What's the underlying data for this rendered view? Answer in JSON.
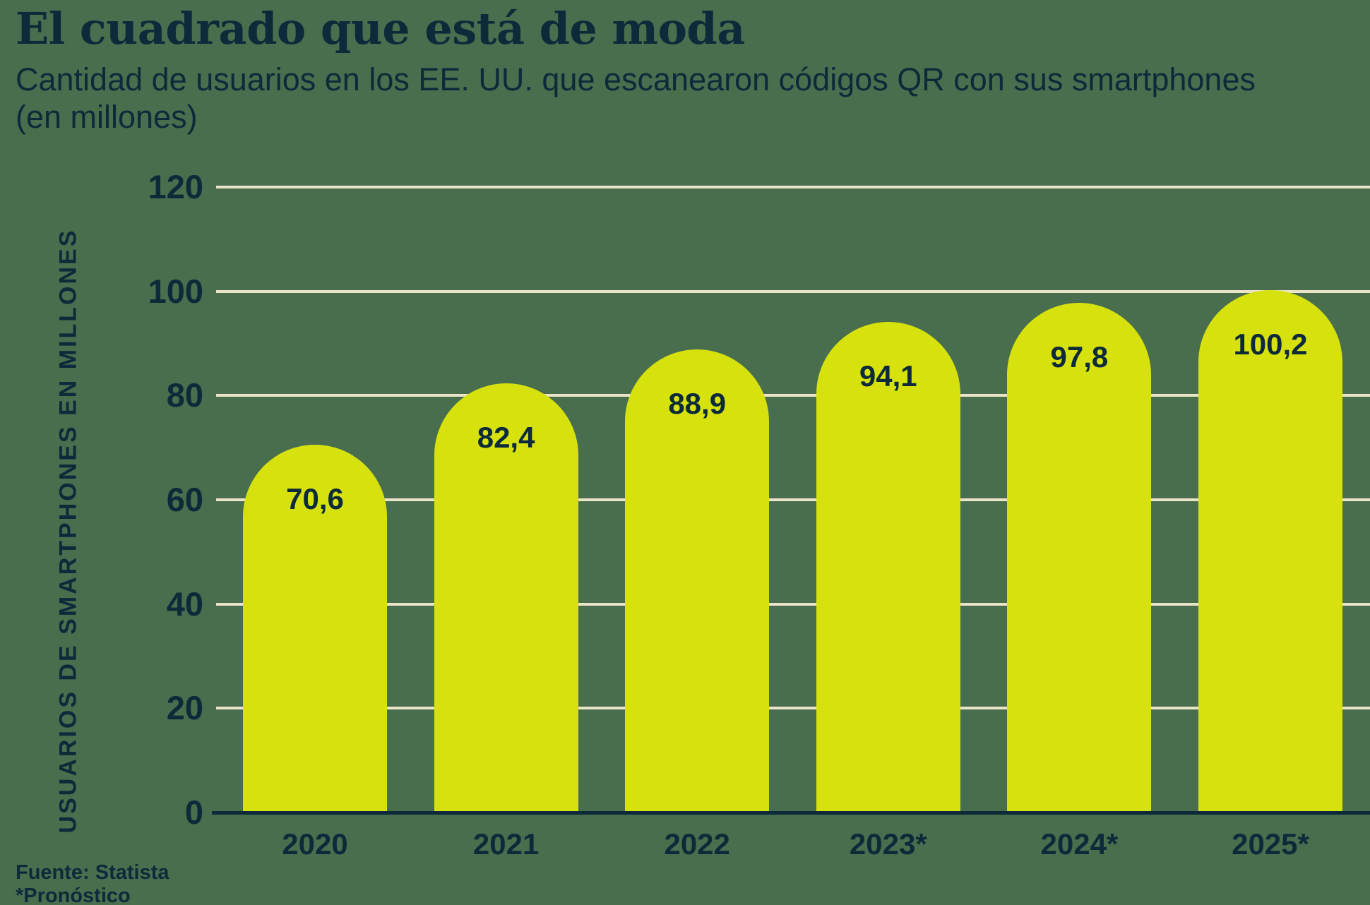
{
  "header": {
    "title": "El cuadrado que está de moda",
    "subtitle_line1": "Cantidad de usuarios en los EE. UU. que escanearon códigos QR con sus smartphones",
    "subtitle_line2": "(en millones)"
  },
  "footer": {
    "source": "Fuente: Statista",
    "forecast_note": "*Pronóstico"
  },
  "colors": {
    "background": "#486e4e",
    "bar": "#d6e10e",
    "gridline": "#ece4c9",
    "text": "#0d2a3a",
    "axis_line": "#0d2a3a"
  },
  "chart_data": {
    "type": "bar",
    "title": "El cuadrado que está de moda",
    "subtitle": "Cantidad de usuarios en los EE. UU. que escanearon códigos QR con sus smartphones (en millones)",
    "ylabel": "USUARIOS DE SMARTPHONES EN MILLONES",
    "xlabel": "",
    "categories": [
      "2020",
      "2021",
      "2022",
      "2023*",
      "2024*",
      "2025*"
    ],
    "values": [
      70.6,
      82.4,
      88.9,
      94.1,
      97.8,
      100.2
    ],
    "value_labels": [
      "70,6",
      "82,4",
      "88,9",
      "94,1",
      "97,8",
      "100,2"
    ],
    "ylim": [
      0,
      120
    ],
    "yticks": [
      0,
      20,
      40,
      60,
      80,
      100,
      120
    ],
    "grid": true,
    "legend_position": "none"
  }
}
